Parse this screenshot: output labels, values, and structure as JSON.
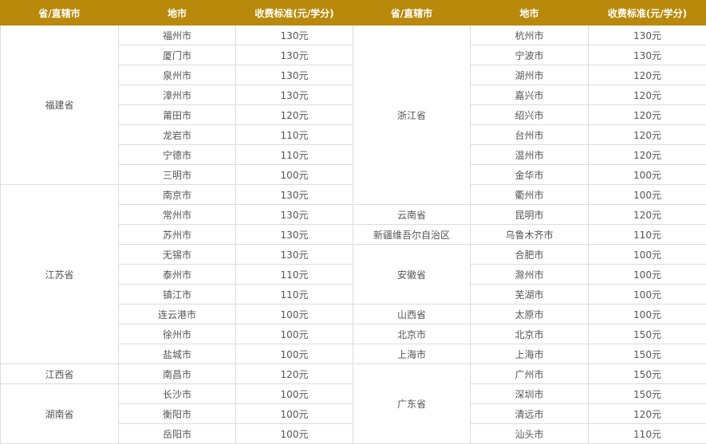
{
  "header_color": "#b8890a",
  "headers": [
    "省/直辖市",
    "地市",
    "收费标准(元/学分)",
    "省/直辖市",
    "地市",
    "收费标准(元/学分)"
  ],
  "left_groups": [
    {
      "province": "福建省",
      "cities": [
        [
          "福州市",
          "130元"
        ],
        [
          "厦门市",
          "130元"
        ],
        [
          "泉州市",
          "130元"
        ],
        [
          "漳州市",
          "130元"
        ],
        [
          "莆田市",
          "120元"
        ],
        [
          "龙岩市",
          "110元"
        ],
        [
          "宁德市",
          "110元"
        ],
        [
          "三明市",
          "100元"
        ]
      ]
    },
    {
      "province": "江苏省",
      "cities": [
        [
          "南京市",
          "130元"
        ],
        [
          "常州市",
          "130元"
        ],
        [
          "苏州市",
          "130元"
        ],
        [
          "无锡市",
          "130元"
        ],
        [
          "泰州市",
          "110元"
        ],
        [
          "镇江市",
          "110元"
        ],
        [
          "连云港市",
          "100元"
        ],
        [
          "徐州市",
          "100元"
        ],
        [
          "盐城市",
          "100元"
        ]
      ]
    },
    {
      "province": "江西省",
      "cities": [
        [
          "南昌市",
          "120元"
        ]
      ]
    },
    {
      "province": "湖南省",
      "cities": [
        [
          "长沙市",
          "100元"
        ],
        [
          "衡阳市",
          "100元"
        ],
        [
          "岳阳市",
          "100元"
        ]
      ]
    }
  ],
  "right_groups": [
    {
      "province": "浙江省",
      "cities": [
        [
          "杭州市",
          "130元"
        ],
        [
          "宁波市",
          "130元"
        ],
        [
          "湖州市",
          "120元"
        ],
        [
          "嘉兴市",
          "120元"
        ],
        [
          "绍兴市",
          "120元"
        ],
        [
          "台州市",
          "120元"
        ],
        [
          "温州市",
          "120元"
        ],
        [
          "金华市",
          "100元"
        ],
        [
          "衢州市",
          "100元"
        ]
      ]
    },
    {
      "province": "云南省",
      "cities": [
        [
          "昆明市",
          "120元"
        ]
      ]
    },
    {
      "province": "新疆维吾尔自治区",
      "cities": [
        [
          "乌鲁木齐市",
          "110元"
        ]
      ]
    },
    {
      "province": "安徽省",
      "cities": [
        [
          "合肥市",
          "100元"
        ],
        [
          "滁州市",
          "100元"
        ],
        [
          "芜湖市",
          "100元"
        ]
      ]
    },
    {
      "province": "山西省",
      "cities": [
        [
          "太原市",
          "100元"
        ]
      ]
    },
    {
      "province": "北京市",
      "cities": [
        [
          "北京市",
          "150元"
        ]
      ]
    },
    {
      "province": "上海市",
      "cities": [
        [
          "上海市",
          "150元"
        ]
      ]
    },
    {
      "province": "广东省",
      "cities": [
        [
          "广州市",
          "150元"
        ],
        [
          "深圳市",
          "150元"
        ],
        [
          "清远市",
          "120元"
        ],
        [
          "汕头市",
          "110元"
        ]
      ]
    }
  ]
}
